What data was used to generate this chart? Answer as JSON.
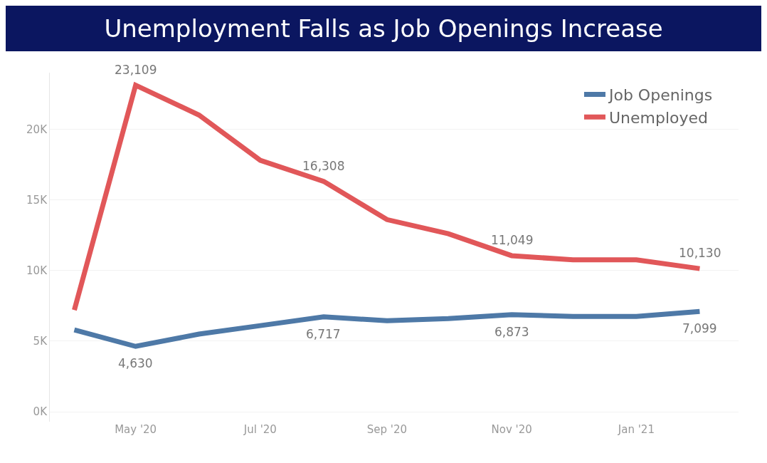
{
  "chart_data": {
    "type": "line",
    "title": "Unemployment Falls as Job Openings Increase",
    "x": [
      "2020-04",
      "2020-05",
      "2020-06",
      "2020-07",
      "2020-08",
      "2020-09",
      "2020-10",
      "2020-11",
      "2020-12",
      "2021-01",
      "2021-02"
    ],
    "series": [
      {
        "name": "Job Openings",
        "color": "#4e79a7",
        "values": [
          5800,
          4630,
          5500,
          6100,
          6717,
          6450,
          6600,
          6873,
          6750,
          6750,
          7099
        ],
        "value_labels": [
          null,
          "4,630",
          null,
          null,
          "6,717",
          null,
          null,
          "6,873",
          null,
          null,
          "7,099"
        ]
      },
      {
        "name": "Unemployed",
        "color": "#e15759",
        "values": [
          7200,
          23109,
          21000,
          17800,
          16308,
          13600,
          12600,
          11049,
          10750,
          10750,
          10130
        ],
        "value_labels": [
          null,
          "23,109",
          null,
          null,
          "16,308",
          null,
          null,
          "11,049",
          null,
          null,
          "10,130"
        ]
      }
    ],
    "xlim": [
      "2020-03-20",
      "2021-02-20"
    ],
    "xticks": [
      {
        "value": "2020-05",
        "label": "May '20"
      },
      {
        "value": "2020-07",
        "label": "Jul '20"
      },
      {
        "value": "2020-09",
        "label": "Sep '20"
      },
      {
        "value": "2020-11",
        "label": "Nov '20"
      },
      {
        "value": "2021-01",
        "label": "Jan '21"
      }
    ],
    "ylim": [
      -700,
      24000
    ],
    "yticks": [
      {
        "value": 0,
        "label": "0K"
      },
      {
        "value": 5000,
        "label": "5K"
      },
      {
        "value": 10000,
        "label": "10K"
      },
      {
        "value": 15000,
        "label": "15K"
      },
      {
        "value": 20000,
        "label": "20K"
      }
    ],
    "grid": "y",
    "legend": "top right",
    "marker": "none",
    "line_style": "solid"
  }
}
